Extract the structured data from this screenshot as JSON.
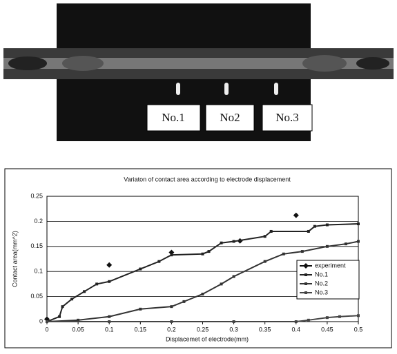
{
  "photo_labels": [
    "No.1",
    "No2",
    "No.3"
  ],
  "chart_data": {
    "type": "line",
    "title": "Variaton of contact area according to electrode displacement",
    "xlabel": "Displacemet of electrode(mm)",
    "ylabel": "Contact area(mm^2)",
    "xlim": [
      0,
      0.5
    ],
    "xticks": [
      0,
      0.05,
      0.1,
      0.15,
      0.2,
      0.25,
      0.3,
      0.35,
      0.4,
      0.45,
      0.5
    ],
    "ylim": [
      0,
      0.25
    ],
    "yticks": [
      0,
      0.05,
      0.1,
      0.15,
      0.2,
      0.25
    ],
    "grid": true,
    "legend": "right",
    "series": [
      {
        "name": "experiment",
        "color": "#111111",
        "marker": "diamond",
        "line": false,
        "x": [
          0,
          0.1,
          0.2,
          0.31,
          0.4
        ],
        "values": [
          0.005,
          0.113,
          0.138,
          0.161,
          0.212
        ]
      },
      {
        "name": "No.1",
        "color": "#222222",
        "marker": "square",
        "line": true,
        "x": [
          0,
          0.02,
          0.025,
          0.04,
          0.06,
          0.08,
          0.1,
          0.15,
          0.18,
          0.2,
          0.25,
          0.26,
          0.28,
          0.3,
          0.35,
          0.36,
          0.42,
          0.43,
          0.45,
          0.5
        ],
        "values": [
          0,
          0.01,
          0.03,
          0.045,
          0.06,
          0.075,
          0.08,
          0.105,
          0.12,
          0.133,
          0.135,
          0.14,
          0.157,
          0.16,
          0.17,
          0.18,
          0.18,
          0.19,
          0.193,
          0.195
        ]
      },
      {
        "name": "No.2",
        "color": "#333333",
        "marker": "square",
        "line": true,
        "x": [
          0,
          0.05,
          0.1,
          0.15,
          0.2,
          0.22,
          0.25,
          0.28,
          0.3,
          0.35,
          0.38,
          0.41,
          0.45,
          0.48,
          0.5
        ],
        "values": [
          0,
          0.003,
          0.01,
          0.025,
          0.03,
          0.04,
          0.055,
          0.075,
          0.09,
          0.12,
          0.135,
          0.14,
          0.15,
          0.155,
          0.16
        ]
      },
      {
        "name": "No.3",
        "color": "#444444",
        "marker": "square",
        "line": true,
        "x": [
          0,
          0.1,
          0.2,
          0.3,
          0.4,
          0.42,
          0.45,
          0.47,
          0.5
        ],
        "values": [
          0,
          0,
          0,
          0,
          0,
          0.003,
          0.008,
          0.01,
          0.012
        ]
      }
    ]
  }
}
